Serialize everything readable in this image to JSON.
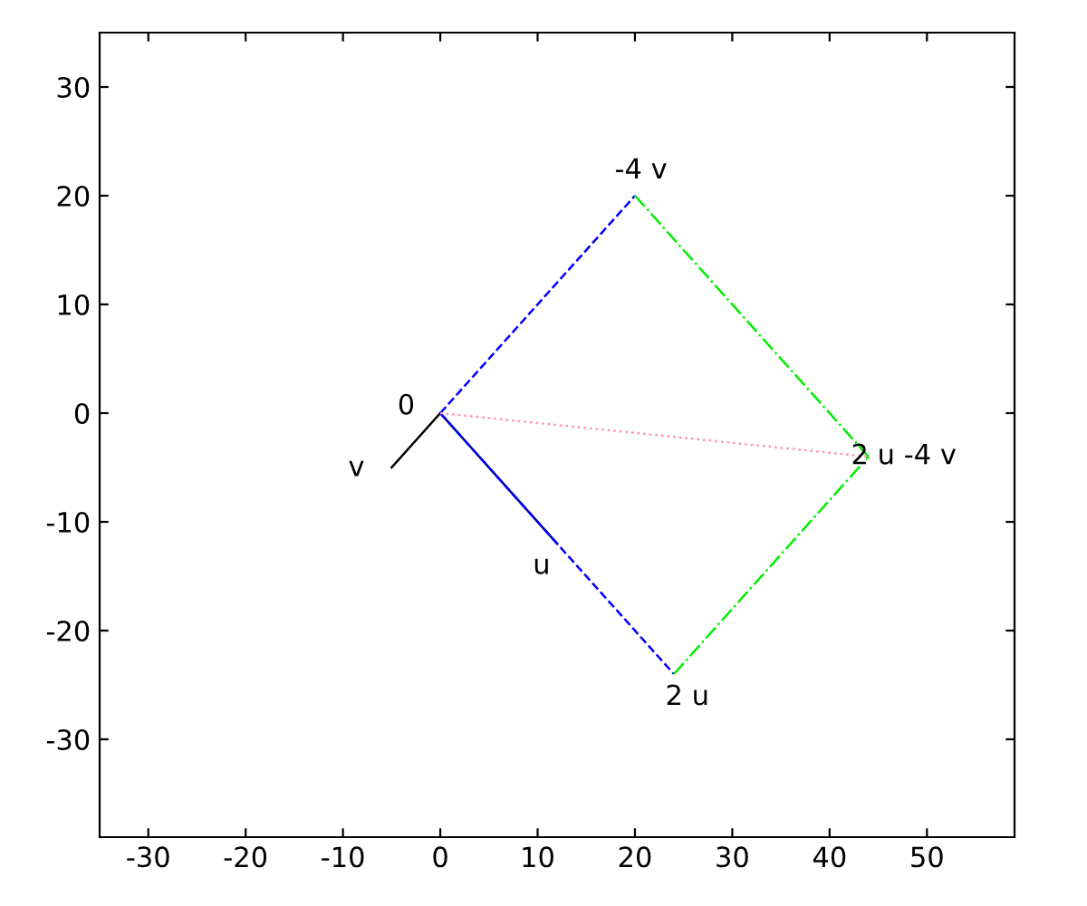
{
  "chart_data": {
    "type": "line",
    "series": [
      {
        "x": [
          0,
          12
        ],
        "values": [
          0,
          -12
        ],
        "color": "#000080",
        "line_style": "solid"
      },
      {
        "x": [
          0,
          -5
        ],
        "values": [
          0,
          -5
        ],
        "color": "#000000",
        "line_style": "solid"
      },
      {
        "x": [
          0,
          20
        ],
        "values": [
          0,
          20
        ],
        "color": "#0000ff",
        "line_style": "dashed"
      },
      {
        "x": [
          0,
          24
        ],
        "values": [
          0,
          -24
        ],
        "color": "#0000ff",
        "line_style": "dashed"
      },
      {
        "x": [
          20,
          44
        ],
        "values": [
          20,
          -4
        ],
        "color": "#00ee00",
        "line_style": "dashdot"
      },
      {
        "x": [
          24,
          44
        ],
        "values": [
          -24,
          -4
        ],
        "color": "#00ee00",
        "line_style": "dashdot"
      },
      {
        "x": [
          0,
          44
        ],
        "values": [
          0,
          -4
        ],
        "color": "#ff8fbf",
        "line_style": "dotted"
      }
    ],
    "annotations": [
      {
        "text": "0",
        "x": 0,
        "y": 0
      },
      {
        "text": "v",
        "x": -5,
        "y": -5
      },
      {
        "text": "u",
        "x": 12,
        "y": -12
      },
      {
        "text": "-4 v",
        "x": 20,
        "y": 20
      },
      {
        "text": "2 u",
        "x": 24,
        "y": -24
      },
      {
        "text": "2 u -4 v",
        "x": 44,
        "y": -4
      }
    ],
    "xlim": [
      -35,
      59
    ],
    "ylim": [
      -39,
      35
    ],
    "xticks": [
      -30,
      -20,
      -10,
      0,
      10,
      20,
      30,
      40,
      50
    ],
    "yticks": [
      -30,
      -20,
      -10,
      0,
      10,
      20,
      30
    ],
    "grid": false,
    "legend": false
  }
}
